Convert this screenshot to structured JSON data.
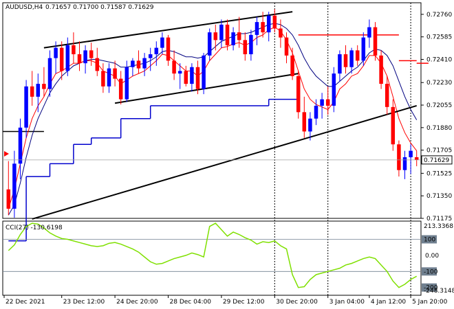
{
  "header": {
    "symbol": "AUDUSD,H4",
    "ohlc": "0.71657 0.71700 0.71587 0.71629"
  },
  "indicator": {
    "label": "CCI(27) -130.6198",
    "max_label": "213.3368",
    "min_label": "-248.3148"
  },
  "colors": {
    "bull": "#0000ff",
    "bear": "#ff0000",
    "ma_fast": "#ff0000",
    "ma_slow": "#000080",
    "step_line": "#0000cd",
    "cci": "#7fe000",
    "trend": "#000000"
  },
  "chart_data": [
    {
      "type": "candlestick",
      "title": "AUDUSD,H4",
      "ylim": [
        0.71175,
        0.7285
      ],
      "y_ticks": [
        "0.72760",
        "0.72585",
        "0.72410",
        "0.72230",
        "0.72055",
        "0.71880",
        "0.71705",
        "0.71525",
        "0.71350",
        "0.71175"
      ],
      "x_ticks": [
        "22 Dec 2021",
        "23 Dec 12:00",
        "24 Dec 20:00",
        "28 Dec 04:00",
        "29 Dec 12:00",
        "30 Dec 20:00",
        "3 Jan 04:00",
        "4 Jan 12:00",
        "5 Jan 20:00"
      ],
      "current_price": "0.71629",
      "candles": [
        [
          0.714,
          0.7162,
          0.712,
          0.7125
        ],
        [
          0.7125,
          0.717,
          0.7118,
          0.716
        ],
        [
          0.716,
          0.7195,
          0.7148,
          0.7188
        ],
        [
          0.7188,
          0.7225,
          0.718,
          0.722
        ],
        [
          0.722,
          0.7232,
          0.7205,
          0.7212
        ],
        [
          0.7212,
          0.723,
          0.72,
          0.7222
        ],
        [
          0.7222,
          0.7235,
          0.7212,
          0.7218
        ],
        [
          0.7218,
          0.7248,
          0.7212,
          0.7242
        ],
        [
          0.7242,
          0.7255,
          0.723,
          0.725
        ],
        [
          0.725,
          0.7255,
          0.7225,
          0.7232
        ],
        [
          0.7232,
          0.7258,
          0.7228,
          0.7252
        ],
        [
          0.7252,
          0.7262,
          0.7238,
          0.7245
        ],
        [
          0.7245,
          0.7255,
          0.7232,
          0.7238
        ],
        [
          0.7238,
          0.7252,
          0.723,
          0.7248
        ],
        [
          0.7248,
          0.7254,
          0.7236,
          0.7242
        ],
        [
          0.7242,
          0.725,
          0.7228,
          0.7232
        ],
        [
          0.7232,
          0.7238,
          0.7215,
          0.722
        ],
        [
          0.722,
          0.7238,
          0.7215,
          0.7234
        ],
        [
          0.7234,
          0.724,
          0.722,
          0.7226
        ],
        [
          0.7226,
          0.7232,
          0.7206,
          0.721
        ],
        [
          0.721,
          0.724,
          0.7208,
          0.7235
        ],
        [
          0.7235,
          0.7242,
          0.7228,
          0.724
        ],
        [
          0.724,
          0.7248,
          0.723,
          0.7234
        ],
        [
          0.7234,
          0.7246,
          0.7228,
          0.7242
        ],
        [
          0.7242,
          0.725,
          0.7232,
          0.7245
        ],
        [
          0.7245,
          0.7255,
          0.7236,
          0.725
        ],
        [
          0.725,
          0.7262,
          0.7245,
          0.7258
        ],
        [
          0.7258,
          0.726,
          0.7236,
          0.724
        ],
        [
          0.724,
          0.7248,
          0.7225,
          0.723
        ],
        [
          0.723,
          0.7238,
          0.7218,
          0.7232
        ],
        [
          0.7232,
          0.7236,
          0.722,
          0.7222
        ],
        [
          0.7222,
          0.7238,
          0.7216,
          0.7235
        ],
        [
          0.7235,
          0.724,
          0.7214,
          0.7218
        ],
        [
          0.7218,
          0.7246,
          0.7214,
          0.7244
        ],
        [
          0.7244,
          0.7265,
          0.724,
          0.7262
        ],
        [
          0.7262,
          0.7268,
          0.7248,
          0.7256
        ],
        [
          0.7256,
          0.7272,
          0.725,
          0.7268
        ],
        [
          0.7268,
          0.7272,
          0.7248,
          0.7252
        ],
        [
          0.7252,
          0.7266,
          0.7248,
          0.7262
        ],
        [
          0.7262,
          0.7274,
          0.725,
          0.7256
        ],
        [
          0.7256,
          0.7262,
          0.724,
          0.7245
        ],
        [
          0.7245,
          0.7264,
          0.724,
          0.726
        ],
        [
          0.726,
          0.7274,
          0.7252,
          0.727
        ],
        [
          0.727,
          0.7278,
          0.7258,
          0.7262
        ],
        [
          0.7262,
          0.7278,
          0.7255,
          0.7275
        ],
        [
          0.7275,
          0.728,
          0.7262,
          0.7265
        ],
        [
          0.7265,
          0.7272,
          0.725,
          0.7258
        ],
        [
          0.7258,
          0.7262,
          0.7238,
          0.7244
        ],
        [
          0.7244,
          0.725,
          0.7225,
          0.7228
        ],
        [
          0.7228,
          0.7232,
          0.7195,
          0.72
        ],
        [
          0.72,
          0.7212,
          0.718,
          0.7185
        ],
        [
          0.7185,
          0.72,
          0.7178,
          0.7195
        ],
        [
          0.7195,
          0.721,
          0.719,
          0.7205
        ],
        [
          0.7205,
          0.7215,
          0.7195,
          0.721
        ],
        [
          0.721,
          0.722,
          0.7198,
          0.7205
        ],
        [
          0.7205,
          0.7235,
          0.72,
          0.723
        ],
        [
          0.723,
          0.7248,
          0.7224,
          0.7245
        ],
        [
          0.7245,
          0.7252,
          0.723,
          0.7235
        ],
        [
          0.7235,
          0.725,
          0.723,
          0.7248
        ],
        [
          0.7248,
          0.7252,
          0.7236,
          0.724
        ],
        [
          0.724,
          0.7262,
          0.7236,
          0.7258
        ],
        [
          0.7258,
          0.7272,
          0.725,
          0.7266
        ],
        [
          0.7266,
          0.727,
          0.724,
          0.7244
        ],
        [
          0.7244,
          0.7248,
          0.7218,
          0.7222
        ],
        [
          0.7222,
          0.7228,
          0.7198,
          0.7204
        ],
        [
          0.7204,
          0.721,
          0.717,
          0.7175
        ],
        [
          0.7175,
          0.7178,
          0.715,
          0.7155
        ],
        [
          0.7155,
          0.717,
          0.7148,
          0.7165
        ],
        [
          0.7165,
          0.7175,
          0.7152,
          0.717
        ],
        [
          0.7165,
          0.717,
          0.7158,
          0.7163
        ]
      ],
      "ma_fast": [
        0.7125,
        0.714,
        0.716,
        0.718,
        0.7195,
        0.7205,
        0.7212,
        0.7222,
        0.723,
        0.7232,
        0.7235,
        0.7238,
        0.7238,
        0.724,
        0.724,
        0.7238,
        0.7232,
        0.723,
        0.7228,
        0.7222,
        0.7225,
        0.7228,
        0.723,
        0.7232,
        0.7236,
        0.724,
        0.7245,
        0.7244,
        0.724,
        0.7236,
        0.7232,
        0.7232,
        0.7228,
        0.7232,
        0.724,
        0.7245,
        0.725,
        0.7251,
        0.7253,
        0.7254,
        0.7252,
        0.7254,
        0.7258,
        0.726,
        0.7264,
        0.7266,
        0.7263,
        0.7256,
        0.7246,
        0.7232,
        0.7218,
        0.721,
        0.7206,
        0.7204,
        0.7202,
        0.7208,
        0.7218,
        0.7222,
        0.7228,
        0.723,
        0.7236,
        0.7244,
        0.7244,
        0.7238,
        0.7228,
        0.7212,
        0.7195,
        0.7184,
        0.7176,
        0.717
      ],
      "ma_slow": [
        0.712,
        0.7128,
        0.7145,
        0.7165,
        0.7182,
        0.7195,
        0.7205,
        0.7215,
        0.7222,
        0.7228,
        0.7232,
        0.7236,
        0.7238,
        0.724,
        0.7241,
        0.7241,
        0.724,
        0.7239,
        0.7238,
        0.7235,
        0.7235,
        0.7236,
        0.7237,
        0.7238,
        0.724,
        0.7243,
        0.7247,
        0.7248,
        0.7247,
        0.7245,
        0.7243,
        0.7243,
        0.7242,
        0.7243,
        0.7247,
        0.7251,
        0.7255,
        0.7257,
        0.7259,
        0.7261,
        0.7261,
        0.7262,
        0.7264,
        0.7266,
        0.7268,
        0.7269,
        0.7268,
        0.7265,
        0.726,
        0.7252,
        0.7242,
        0.7234,
        0.7228,
        0.7224,
        0.722,
        0.722,
        0.7224,
        0.7228,
        0.7232,
        0.7235,
        0.724,
        0.7246,
        0.7249,
        0.7248,
        0.7244,
        0.7236,
        0.7224,
        0.7212,
        0.7202,
        0.7194
      ],
      "step_line": [
        {
          "from": 0,
          "to": 3,
          "value": 0.71
        },
        {
          "from": 3,
          "to": 7,
          "value": 0.715
        },
        {
          "from": 7,
          "to": 11,
          "value": 0.716
        },
        {
          "from": 11,
          "to": 14,
          "value": 0.7175
        },
        {
          "from": 14,
          "to": 19,
          "value": 0.718
        },
        {
          "from": 19,
          "to": 24,
          "value": 0.7195
        },
        {
          "from": 24,
          "to": 44,
          "value": 0.7205
        },
        {
          "from": 44,
          "to": 49,
          "value": 0.721
        }
      ],
      "red_levels": [
        {
          "from": 49,
          "to": 61,
          "value": 0.726
        },
        {
          "from": 62,
          "to": 66,
          "value": 0.726
        },
        {
          "from": 66,
          "to": 69,
          "value": 0.724
        },
        {
          "from": 69,
          "to": 71,
          "value": 0.7238
        }
      ],
      "black_level": {
        "from": 0,
        "to": 6,
        "value": 0.7185
      },
      "trendlines": [
        {
          "x1": 6,
          "y1": 0.725,
          "x2": 48,
          "y2": 0.7278
        },
        {
          "x1": 18,
          "y1": 0.7207,
          "x2": 49,
          "y2": 0.723
        },
        {
          "x1": 4,
          "y1": 0.7117,
          "x2": 69,
          "y2": 0.7205
        }
      ]
    },
    {
      "type": "line",
      "title": "CCI(27) -130.6198",
      "ylim": [
        -248.3148,
        213.3368
      ],
      "y_ticks": [
        "100",
        "0.00",
        "-100",
        "-200"
      ],
      "values": [
        30,
        65,
        130,
        180,
        200,
        195,
        170,
        140,
        120,
        105,
        100,
        90,
        80,
        70,
        60,
        55,
        60,
        75,
        80,
        70,
        55,
        40,
        20,
        -10,
        -40,
        -55,
        -50,
        -35,
        -20,
        -10,
        0,
        15,
        5,
        -10,
        180,
        200,
        160,
        120,
        145,
        130,
        110,
        95,
        70,
        85,
        80,
        90,
        60,
        40,
        -120,
        -200,
        -195,
        -150,
        -120,
        -110,
        -100,
        -90,
        -80,
        -60,
        -50,
        -35,
        -20,
        -10,
        -20,
        -60,
        -100,
        -160,
        -200,
        -180,
        -150,
        -130
      ]
    }
  ]
}
